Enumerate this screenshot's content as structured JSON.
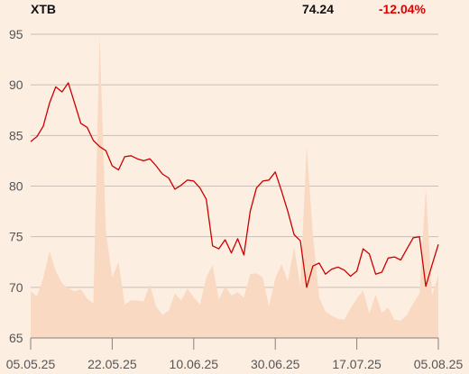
{
  "header": {
    "ticker": "XTB",
    "price": "74.24",
    "change": "-12.04%"
  },
  "colors": {
    "background": "#fdeee2",
    "price_line": "#cc0000",
    "volume_area": "#f9d9c1",
    "change_negative": "#e00000",
    "grid": "#c9bfb6"
  },
  "chart_data": {
    "type": "line",
    "title": "",
    "xlabel": "",
    "ylabel": "",
    "ylim": [
      65,
      97
    ],
    "x_ticks": [
      "05.05.25",
      "22.05.25",
      "10.06.25",
      "30.06.25",
      "17.07.25",
      "05.08.25"
    ],
    "y_ticks": [
      65,
      70,
      75,
      80,
      85,
      90,
      95
    ],
    "grid": true,
    "legend": "none",
    "series": [
      {
        "role": "price",
        "values": [
          84.4,
          84.9,
          85.9,
          88.2,
          89.8,
          89.3,
          90.2,
          88.2,
          86.2,
          85.8,
          84.5,
          83.9,
          83.5,
          82.0,
          81.6,
          82.9,
          83.0,
          82.7,
          82.5,
          82.7,
          82.0,
          81.2,
          80.8,
          79.7,
          80.1,
          80.6,
          80.5,
          79.8,
          78.7,
          74.1,
          73.8,
          74.7,
          73.4,
          74.8,
          73.2,
          77.5,
          79.8,
          80.5,
          80.6,
          81.4,
          79.5,
          77.5,
          75.2,
          74.6,
          70.0,
          72.1,
          72.4,
          71.3,
          71.8,
          72.0,
          71.7,
          71.1,
          71.6,
          73.8,
          73.3,
          71.3,
          71.5,
          72.9,
          73.0,
          72.7,
          73.8,
          74.9,
          75.0,
          70.1,
          72.2,
          74.24
        ]
      },
      {
        "role": "volume",
        "values": [
          69.6,
          69.1,
          70.9,
          73.6,
          71.6,
          70.4,
          69.9,
          69.6,
          69.8,
          68.9,
          68.4,
          95.0,
          75.5,
          71.0,
          72.5,
          68.3,
          68.7,
          68.7,
          68.6,
          70.3,
          68.1,
          67.3,
          67.7,
          69.4,
          68.7,
          69.9,
          69.0,
          68.3,
          71.0,
          72.2,
          68.8,
          70.1,
          69.2,
          69.5,
          69.0,
          71.3,
          71.4,
          71.0,
          68.1,
          70.9,
          72.3,
          70.6,
          74.0,
          70.1,
          84.0,
          75.2,
          69.0,
          67.6,
          67.2,
          66.9,
          66.8,
          67.9,
          68.9,
          69.7,
          67.4,
          69.3,
          67.5,
          68.0,
          66.8,
          66.7,
          67.3,
          68.4,
          69.4,
          79.8,
          69.2,
          71.2
        ]
      }
    ]
  }
}
